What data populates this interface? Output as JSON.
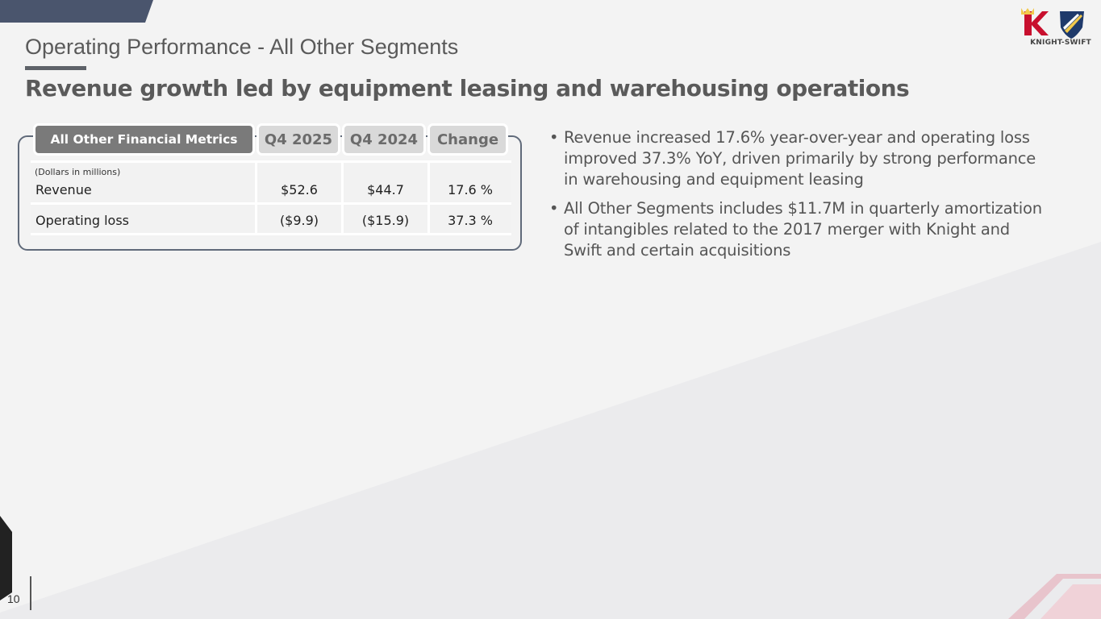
{
  "header": {
    "page_title": "Operating Performance - All Other Segments",
    "headline": "Revenue growth led by equipment leasing and warehousing operations"
  },
  "logo": {
    "text": "KNIGHT-SWIFT",
    "colors": {
      "knight_red": "#c8102e",
      "swift_blue": "#1f3a6b"
    }
  },
  "table": {
    "headers": [
      "All Other  Financial Metrics",
      "Q4 2025",
      "Q4 2024",
      "Change"
    ],
    "units_note": "(Dollars in millions)",
    "rows": [
      {
        "label": "Revenue",
        "q4_2025": "$52.6",
        "q4_2024": "$44.7",
        "change": "17.6 %"
      },
      {
        "label": "Operating loss",
        "q4_2025": "($9.9)",
        "q4_2024": "($15.9)",
        "change": "37.3 %"
      }
    ]
  },
  "bullets": [
    "Revenue increased 17.6% year-over-year and operating loss improved 37.3% YoY, driven primarily by strong performance in warehousing and equipment leasing",
    "All Other Segments includes $11.7M in quarterly amortization of intangibles related to the 2017 merger with Knight and Swift and certain acquisitions"
  ],
  "footer": {
    "page_number": "10"
  },
  "colors": {
    "title_gray": "#5a5a5a",
    "header_dark": "#7a7a7a",
    "header_light": "#d9d9d9",
    "frame": "#606a7a",
    "accent_pink": "#e8b4c0"
  }
}
